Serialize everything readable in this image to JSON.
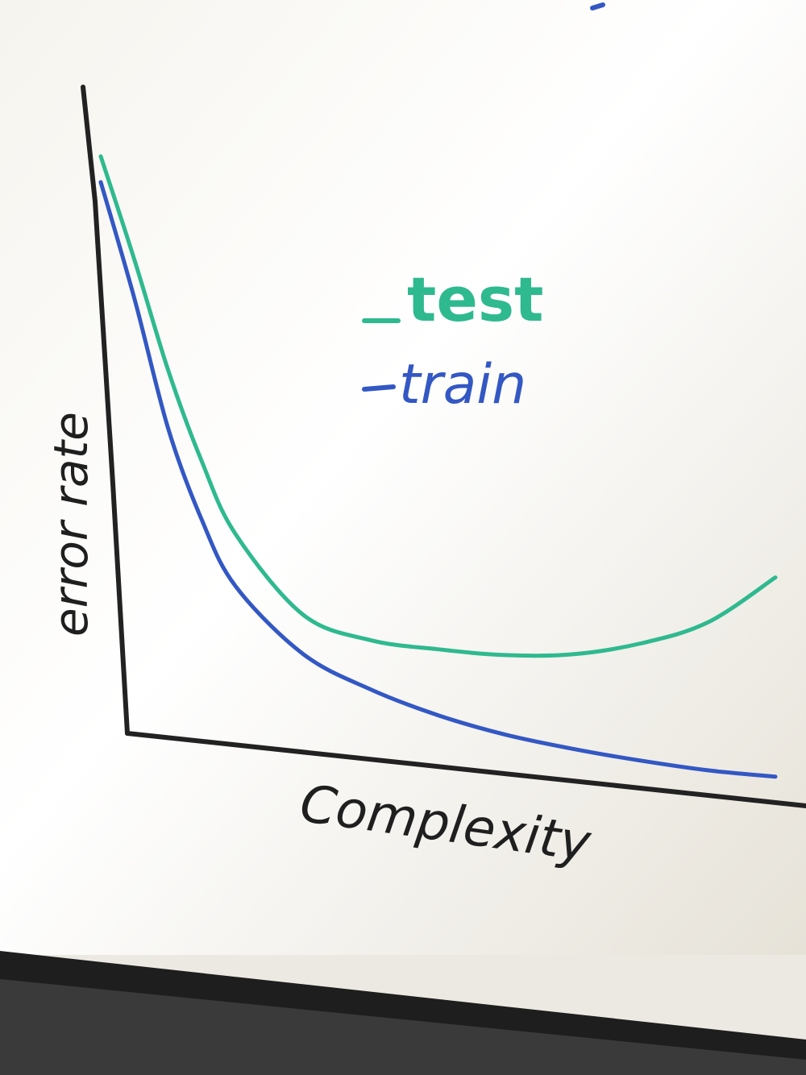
{
  "chart_data": {
    "type": "line",
    "title": "",
    "xlabel": "Complexity",
    "ylabel": "error rate",
    "xlim": [
      0,
      10
    ],
    "ylim": [
      0,
      10
    ],
    "grid": false,
    "legend_placement": "top-right",
    "x": [
      0,
      0.5,
      1,
      1.5,
      2,
      3,
      4,
      5,
      6,
      7,
      8,
      9,
      10
    ],
    "series": [
      {
        "name": "test",
        "color": "#2fb98f",
        "values": [
          9.2,
          7.6,
          5.9,
          4.5,
          3.4,
          2.2,
          1.85,
          1.75,
          1.7,
          1.75,
          1.95,
          2.3,
          3.0
        ]
      },
      {
        "name": "train",
        "color": "#3358c4",
        "values": [
          8.8,
          7.0,
          5.0,
          3.6,
          2.6,
          1.6,
          1.1,
          0.75,
          0.5,
          0.33,
          0.2,
          0.1,
          0.05
        ]
      }
    ]
  },
  "colors": {
    "board": "#f3f1eb",
    "axis": "#222222",
    "frame": "#1e1e1e"
  }
}
